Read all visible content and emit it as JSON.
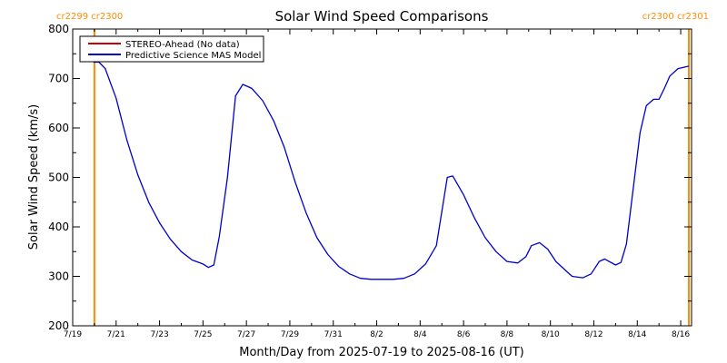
{
  "chart_data": {
    "type": "line",
    "title": "Solar Wind Speed Comparisons",
    "xlabel": "Month/Day from 2025-07-19 to 2025-08-16 (UT)",
    "ylabel": "Solar Wind Speed (km/s)",
    "xlim": [
      "2025-07-19",
      "2025-08-16T12:00"
    ],
    "ylim": [
      200,
      800
    ],
    "x_ticks": [
      {
        "date": "2025-07-19",
        "label": "7/19"
      },
      {
        "date": "2025-07-21",
        "label": "7/21"
      },
      {
        "date": "2025-07-23",
        "label": "7/23"
      },
      {
        "date": "2025-07-25",
        "label": "7/25"
      },
      {
        "date": "2025-07-27",
        "label": "7/27"
      },
      {
        "date": "2025-07-29",
        "label": "7/29"
      },
      {
        "date": "2025-07-31",
        "label": "7/31"
      },
      {
        "date": "2025-08-02",
        "label": "8/2"
      },
      {
        "date": "2025-08-04",
        "label": "8/4"
      },
      {
        "date": "2025-08-06",
        "label": "8/6"
      },
      {
        "date": "2025-08-08",
        "label": "8/8"
      },
      {
        "date": "2025-08-10",
        "label": "8/10"
      },
      {
        "date": "2025-08-12",
        "label": "8/12"
      },
      {
        "date": "2025-08-14",
        "label": "8/14"
      },
      {
        "date": "2025-08-16",
        "label": "8/16"
      }
    ],
    "y_ticks": [
      200,
      300,
      400,
      500,
      600,
      700,
      800
    ],
    "legend": {
      "placement": "top-left",
      "entries": [
        {
          "name": "STEREO-Ahead (No data)",
          "color": "#cc0000"
        },
        {
          "name": "Predictive Science MAS Model",
          "color": "#0000cc"
        }
      ]
    },
    "markers": [
      {
        "date": "2025-07-20",
        "label": "cr2299 cr2300",
        "side": "left",
        "color": "#ff8c00"
      },
      {
        "date": "2025-08-16T09:00",
        "label": "cr2300 cr2301",
        "side": "right",
        "color": "#ff8c00"
      }
    ],
    "series": [
      {
        "name": "Predictive Science MAS Model",
        "color": "#0000cc",
        "points": [
          [
            "2025-07-19T23:00",
            733
          ],
          [
            "2025-07-20T05:00",
            733
          ],
          [
            "2025-07-20T12:00",
            720
          ],
          [
            "2025-07-21T00:00",
            660
          ],
          [
            "2025-07-21T12:00",
            575
          ],
          [
            "2025-07-22T00:00",
            505
          ],
          [
            "2025-07-22T12:00",
            450
          ],
          [
            "2025-07-23T00:00",
            408
          ],
          [
            "2025-07-23T12:00",
            375
          ],
          [
            "2025-07-24T00:00",
            350
          ],
          [
            "2025-07-24T12:00",
            333
          ],
          [
            "2025-07-25T00:00",
            325
          ],
          [
            "2025-07-25T06:00",
            318
          ],
          [
            "2025-07-25T12:00",
            323
          ],
          [
            "2025-07-25T18:00",
            380
          ],
          [
            "2025-07-26T03:00",
            500
          ],
          [
            "2025-07-26T12:00",
            665
          ],
          [
            "2025-07-26T20:00",
            688
          ],
          [
            "2025-07-27T06:00",
            680
          ],
          [
            "2025-07-27T18:00",
            655
          ],
          [
            "2025-07-28T06:00",
            615
          ],
          [
            "2025-07-28T18:00",
            560
          ],
          [
            "2025-07-29T06:00",
            490
          ],
          [
            "2025-07-29T18:00",
            428
          ],
          [
            "2025-07-30T06:00",
            378
          ],
          [
            "2025-07-30T18:00",
            344
          ],
          [
            "2025-07-31T06:00",
            320
          ],
          [
            "2025-07-31T18:00",
            305
          ],
          [
            "2025-08-01T06:00",
            296
          ],
          [
            "2025-08-01T18:00",
            294
          ],
          [
            "2025-08-02T06:00",
            294
          ],
          [
            "2025-08-02T18:00",
            294
          ],
          [
            "2025-08-03T06:00",
            296
          ],
          [
            "2025-08-03T18:00",
            305
          ],
          [
            "2025-08-04T06:00",
            325
          ],
          [
            "2025-08-04T18:00",
            362
          ],
          [
            "2025-08-05T06:00",
            500
          ],
          [
            "2025-08-05T12:00",
            503
          ],
          [
            "2025-08-06T00:00",
            465
          ],
          [
            "2025-08-06T12:00",
            418
          ],
          [
            "2025-08-07T00:00",
            378
          ],
          [
            "2025-08-07T12:00",
            350
          ],
          [
            "2025-08-08T00:00",
            330
          ],
          [
            "2025-08-08T12:00",
            327
          ],
          [
            "2025-08-08T21:00",
            340
          ],
          [
            "2025-08-09T03:00",
            362
          ],
          [
            "2025-08-09T12:00",
            368
          ],
          [
            "2025-08-09T21:00",
            355
          ],
          [
            "2025-08-10T06:00",
            330
          ],
          [
            "2025-08-10T18:00",
            310
          ],
          [
            "2025-08-11T00:00",
            300
          ],
          [
            "2025-08-11T12:00",
            297
          ],
          [
            "2025-08-11T21:00",
            305
          ],
          [
            "2025-08-12T06:00",
            330
          ],
          [
            "2025-08-12T12:00",
            335
          ],
          [
            "2025-08-13T00:00",
            323
          ],
          [
            "2025-08-13T06:00",
            328
          ],
          [
            "2025-08-13T12:00",
            365
          ],
          [
            "2025-08-13T21:00",
            500
          ],
          [
            "2025-08-14T03:00",
            590
          ],
          [
            "2025-08-14T10:00",
            645
          ],
          [
            "2025-08-14T18:00",
            658
          ],
          [
            "2025-08-15T00:00",
            658
          ],
          [
            "2025-08-15T06:00",
            680
          ],
          [
            "2025-08-15T12:00",
            705
          ],
          [
            "2025-08-15T21:00",
            720
          ],
          [
            "2025-08-16T09:00",
            725
          ]
        ]
      }
    ]
  }
}
